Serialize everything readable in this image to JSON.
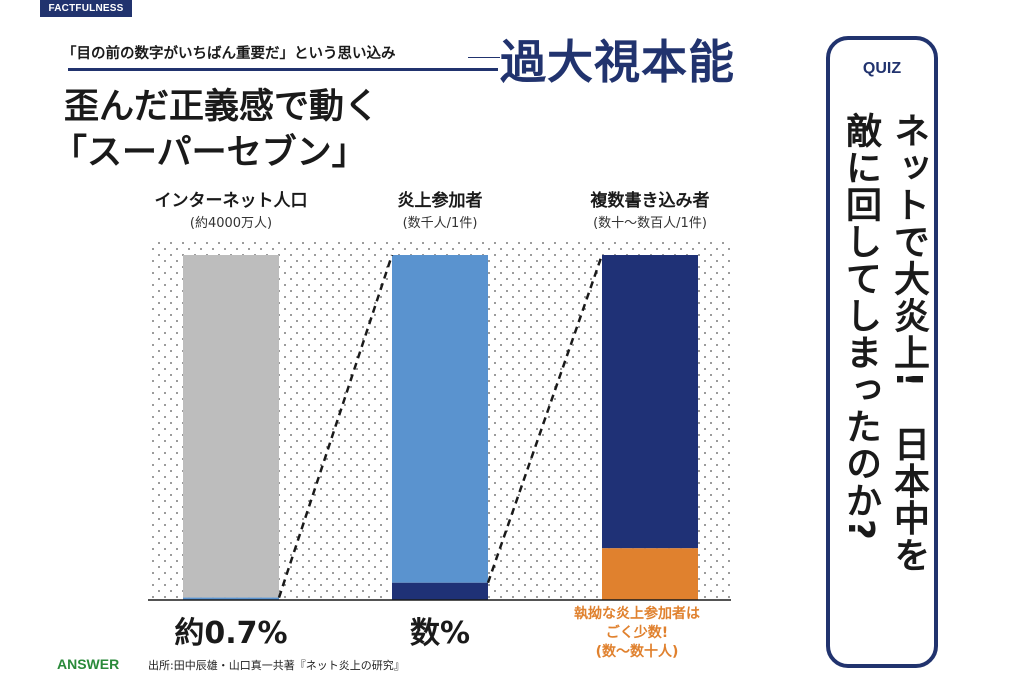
{
  "header": {
    "tag": "FACTFULNESS",
    "subtitle": "「目の前の数字がいちばん重要だ」という思い込み",
    "main_title": "過大視本能",
    "headline_line1": "歪んだ正義感で動く",
    "headline_line2": "「スーパーセブン」"
  },
  "chart_data": {
    "type": "bar",
    "categories": [
      "インターネット人口",
      "炎上参加者",
      "複数書き込み者"
    ],
    "category_notes": [
      "(約4000万人)",
      "(数千人/1件)",
      "(数十〜数百人/1件)"
    ],
    "series": [
      {
        "values": [
          0.7,
          5,
          15
        ]
      },
      {
        "values": [
          99.3,
          95,
          85
        ]
      }
    ],
    "colors": {
      "bar1_rest": "#bdbdbd",
      "bar1_part": "#5a93cf",
      "bar2_rest": "#5a93cf",
      "bar2_part": "#1f3176",
      "bar3_rest": "#1f3176",
      "bar3_part": "#e0812e",
      "dots": "#555555",
      "ink": "#1a1a1a",
      "accent": "#21336e"
    },
    "ylim": [
      0,
      100
    ],
    "labels": [
      "約0.7%",
      "数%"
    ],
    "annotation": "執拗な炎上参加者は\nごく少数!\n(数〜数十人)"
  },
  "footer": {
    "answer": "ANSWER",
    "source": "出所:田中辰雄・山口真一共著『ネット炎上の研究』"
  },
  "quiz": {
    "label": "QUIZ",
    "col1": "ネットで大炎上!　日本中を",
    "col2": "敵に回してしまったのか?"
  }
}
